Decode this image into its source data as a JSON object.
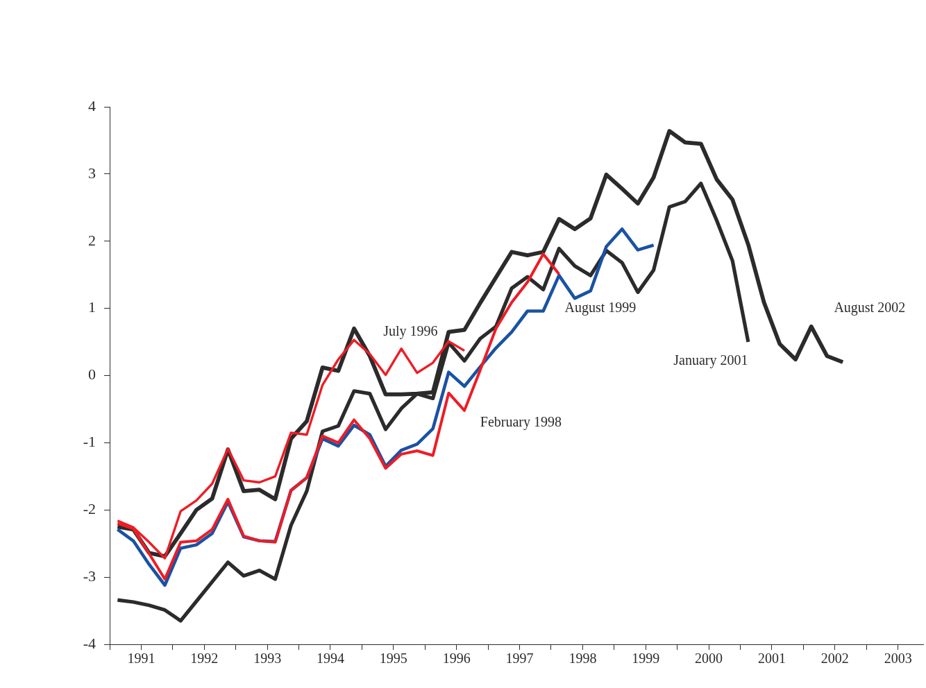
{
  "chart_data": {
    "type": "line",
    "x": [
      1991.125,
      1991.375,
      1991.625,
      1991.875,
      1992.125,
      1992.375,
      1992.625,
      1992.875,
      1993.125,
      1993.375,
      1993.625,
      1993.875,
      1994.125,
      1994.375,
      1994.625,
      1994.875,
      1995.125,
      1995.375,
      1995.625,
      1995.875,
      1996.125,
      1996.375,
      1996.625,
      1996.875,
      1997.125,
      1997.375,
      1997.625,
      1997.875,
      1998.125,
      1998.375,
      1998.625,
      1998.875,
      1999.125,
      1999.375,
      1999.625,
      1999.875,
      2000.125,
      2000.375,
      2000.625,
      2000.875,
      2001.125,
      2001.375,
      2001.625,
      2001.875,
      2002.125,
      2002.375,
      2002.625
    ],
    "series": [
      {
        "name": "July 1996",
        "color": "#ee1c25",
        "values": [
          -2.16,
          -2.26,
          -2.48,
          -2.72,
          -2.02,
          -1.86,
          -1.61,
          -1.09,
          -1.56,
          -1.59,
          -1.5,
          -0.85,
          -0.88,
          -0.14,
          0.24,
          0.53,
          0.32,
          0.01,
          0.4,
          0.04,
          0.19,
          0.51,
          0.37,
          null,
          null,
          null,
          null,
          null,
          null,
          null,
          null,
          null,
          null,
          null,
          null,
          null,
          null,
          null,
          null,
          null,
          null,
          null,
          null,
          null,
          null,
          null,
          null
        ]
      },
      {
        "name": "February 1998",
        "color": "#ee1c25",
        "values": [
          -2.2,
          -2.28,
          -2.65,
          -3.03,
          -2.48,
          -2.46,
          -2.29,
          -1.84,
          -2.39,
          -2.46,
          -2.48,
          -1.71,
          -1.52,
          -0.9,
          -1.0,
          -0.66,
          -0.94,
          -1.38,
          -1.17,
          -1.12,
          -1.19,
          -0.26,
          -0.52,
          0.08,
          0.7,
          1.09,
          1.39,
          1.81,
          1.51,
          null,
          null,
          null,
          null,
          null,
          null,
          null,
          null,
          null,
          null,
          null,
          null,
          null,
          null,
          null,
          null,
          null,
          null
        ]
      },
      {
        "name": "August 1999",
        "color": "#1a52a3",
        "values": [
          -2.29,
          -2.46,
          -2.81,
          -3.12,
          -2.57,
          -2.52,
          -2.35,
          -1.88,
          -2.4,
          -2.46,
          -2.47,
          -1.71,
          -1.52,
          -0.94,
          -1.05,
          -0.74,
          -0.88,
          -1.35,
          -1.11,
          -1.02,
          -0.79,
          0.05,
          -0.16,
          0.13,
          0.41,
          0.65,
          0.96,
          0.96,
          1.49,
          1.15,
          1.26,
          1.92,
          2.18,
          1.87,
          1.94,
          null,
          null,
          null,
          null,
          null,
          null,
          null,
          null,
          null,
          null,
          null,
          null
        ]
      },
      {
        "name": "January 2001",
        "color": "#2b2b2b",
        "values": [
          -3.34,
          -3.37,
          -3.42,
          -3.49,
          -3.65,
          -3.36,
          -3.07,
          -2.78,
          -2.98,
          -2.9,
          -3.03,
          -2.23,
          -1.72,
          -0.83,
          -0.75,
          -0.23,
          -0.27,
          -0.8,
          -0.49,
          -0.27,
          -0.34,
          0.49,
          0.22,
          0.55,
          0.73,
          1.3,
          1.47,
          1.28,
          1.89,
          1.63,
          1.49,
          1.86,
          1.68,
          1.24,
          1.57,
          2.51,
          2.59,
          2.86,
          2.31,
          1.71,
          0.5,
          null,
          null,
          null,
          null,
          null,
          null
        ]
      },
      {
        "name": "August 2002",
        "color": "#2b2b2b",
        "values": [
          -2.25,
          -2.29,
          -2.64,
          -2.69,
          -2.35,
          -2.0,
          -1.83,
          -1.1,
          -1.72,
          -1.7,
          -1.84,
          -0.94,
          -0.68,
          0.12,
          0.07,
          0.7,
          0.29,
          -0.28,
          -0.28,
          -0.27,
          -0.25,
          0.65,
          0.68,
          1.08,
          1.46,
          1.84,
          1.79,
          1.84,
          2.33,
          2.18,
          2.34,
          2.99,
          2.78,
          2.56,
          2.95,
          3.64,
          3.47,
          3.45,
          2.92,
          2.62,
          1.95,
          1.09,
          0.47,
          0.24,
          0.73,
          0.29,
          0.2
        ]
      }
    ],
    "xlim": [
      1991,
      2003.9
    ],
    "xticks": [
      {
        "value": 1991,
        "label": null
      },
      {
        "value": 1991.5,
        "label": "1991"
      },
      {
        "value": 1992,
        "label": null
      },
      {
        "value": 1992.5,
        "label": "1992"
      },
      {
        "value": 1993,
        "label": null
      },
      {
        "value": 1993.5,
        "label": "1993"
      },
      {
        "value": 1994,
        "label": null
      },
      {
        "value": 1994.5,
        "label": "1994"
      },
      {
        "value": 1995,
        "label": null
      },
      {
        "value": 1995.5,
        "label": "1995"
      },
      {
        "value": 1996,
        "label": null
      },
      {
        "value": 1996.5,
        "label": "1996"
      },
      {
        "value": 1997,
        "label": null
      },
      {
        "value": 1997.5,
        "label": "1997"
      },
      {
        "value": 1998,
        "label": null
      },
      {
        "value": 1998.5,
        "label": "1998"
      },
      {
        "value": 1999,
        "label": null
      },
      {
        "value": 1999.5,
        "label": "1999"
      },
      {
        "value": 2000,
        "label": null
      },
      {
        "value": 2000.5,
        "label": "2000"
      },
      {
        "value": 2001,
        "label": null
      },
      {
        "value": 2001.5,
        "label": "2001"
      },
      {
        "value": 2002,
        "label": null
      },
      {
        "value": 2002.5,
        "label": "2002"
      },
      {
        "value": 2003,
        "label": null
      },
      {
        "value": 2003.5,
        "label": "2003"
      }
    ],
    "ylim": [
      -4,
      4
    ],
    "yticks": [
      -4,
      -3,
      -2,
      -1,
      0,
      1,
      2,
      3,
      4
    ],
    "grid": false,
    "legend": false,
    "marker": "none",
    "line_style": "solid"
  }
}
